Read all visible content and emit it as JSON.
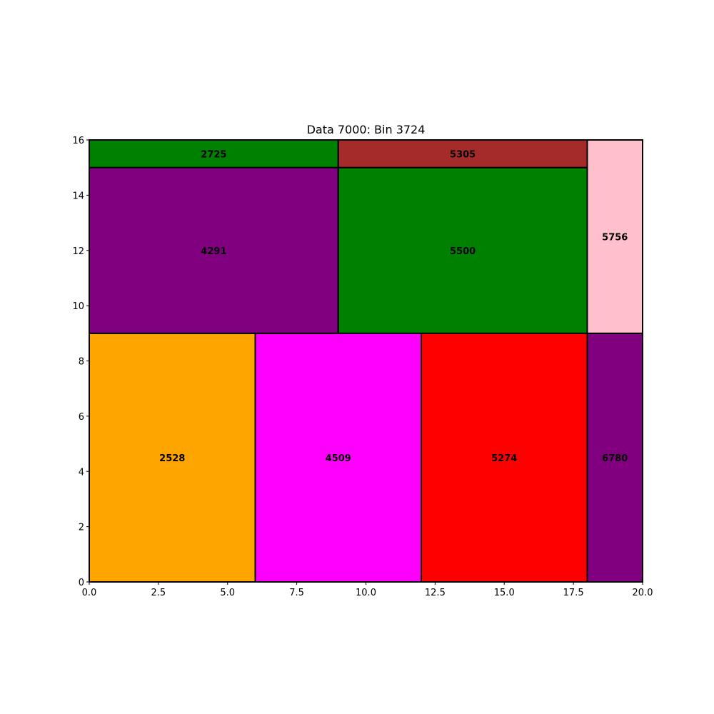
{
  "chart_data": {
    "type": "treemap",
    "title": "Data 7000: Bin 3724",
    "xlabel": "",
    "ylabel": "",
    "xlim": [
      0,
      20
    ],
    "ylim": [
      0,
      16
    ],
    "xticks": [
      0,
      2.5,
      5,
      7.5,
      10,
      12.5,
      15,
      17.5,
      20
    ],
    "xtick_labels": [
      "0.0",
      "2.5",
      "5.0",
      "7.5",
      "10.0",
      "12.5",
      "15.0",
      "17.5",
      "20.0"
    ],
    "yticks": [
      0,
      2,
      4,
      6,
      8,
      10,
      12,
      14,
      16
    ],
    "ytick_labels": [
      "0",
      "2",
      "4",
      "6",
      "8",
      "10",
      "12",
      "14",
      "16"
    ],
    "grid": false,
    "rectangles": [
      {
        "label": "2528",
        "x": 0,
        "y": 0,
        "width": 6,
        "height": 9,
        "color": "#FFA500"
      },
      {
        "label": "4509",
        "x": 6,
        "y": 0,
        "width": 6,
        "height": 9,
        "color": "#FF00FF"
      },
      {
        "label": "5274",
        "x": 12,
        "y": 0,
        "width": 6,
        "height": 9,
        "color": "#FF0000"
      },
      {
        "label": "6780",
        "x": 18,
        "y": 0,
        "width": 2,
        "height": 9,
        "color": "#800080"
      },
      {
        "label": "4291",
        "x": 0,
        "y": 9,
        "width": 9,
        "height": 6,
        "color": "#800080"
      },
      {
        "label": "5500",
        "x": 9,
        "y": 9,
        "width": 9,
        "height": 6,
        "color": "#008000"
      },
      {
        "label": "5756",
        "x": 18,
        "y": 9,
        "width": 2,
        "height": 7,
        "color": "#FFC0CB"
      },
      {
        "label": "2725",
        "x": 0,
        "y": 15,
        "width": 9,
        "height": 1,
        "color": "#008000"
      },
      {
        "label": "5305",
        "x": 9,
        "y": 15,
        "width": 9,
        "height": 1,
        "color": "#A52A2A"
      }
    ]
  }
}
